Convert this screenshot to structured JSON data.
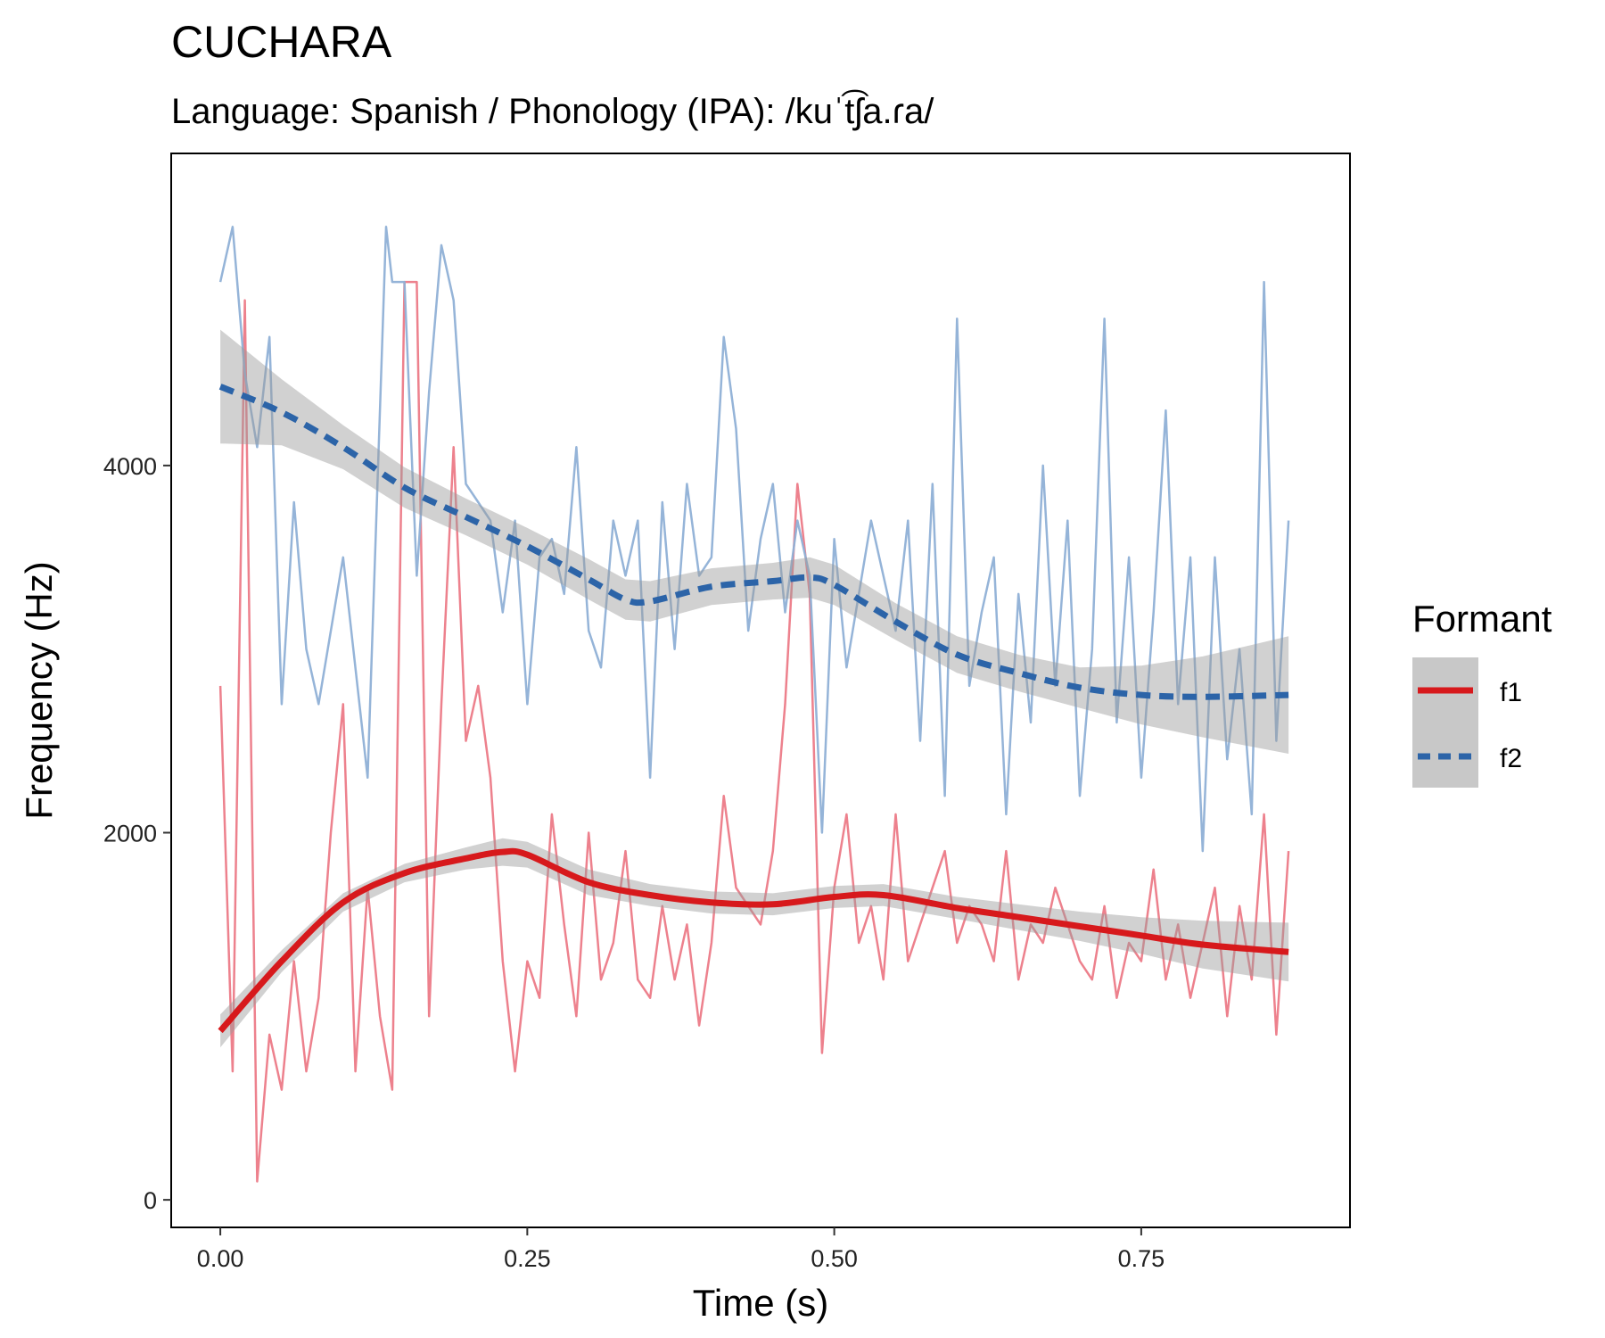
{
  "chart_data": {
    "type": "line",
    "title": "CUCHARA",
    "subtitle": "Language: Spanish / Phonology (IPA): /kuˈt͡ʃa.ɾa/",
    "xlabel": "Time (s)",
    "ylabel": "Frequency (Hz)",
    "xlim": [
      -0.04,
      0.92
    ],
    "ylim": [
      -150,
      5700
    ],
    "xticks": [
      0.0,
      0.25,
      0.5,
      0.75
    ],
    "xtick_labels": [
      "0.00",
      "0.25",
      "0.50",
      "0.75"
    ],
    "yticks": [
      0,
      2000,
      4000
    ],
    "ytick_labels": [
      "0",
      "2000",
      "4000"
    ],
    "grid": false,
    "legend": {
      "title": "Formant",
      "position": "right",
      "entries": [
        {
          "label": "f1",
          "color": "#d7191c",
          "dash": "solid"
        },
        {
          "label": "f2",
          "color": "#2c64a8",
          "dash": "dashed"
        }
      ]
    },
    "series": [
      {
        "name": "f1",
        "raw_color": "#ec7a87",
        "smooth_color": "#d7191c",
        "raw": {
          "x": [
            0.0,
            0.01,
            0.02,
            0.03,
            0.04,
            0.05,
            0.06,
            0.07,
            0.08,
            0.09,
            0.1,
            0.11,
            0.12,
            0.13,
            0.14,
            0.15,
            0.16,
            0.17,
            0.18,
            0.19,
            0.2,
            0.21,
            0.22,
            0.23,
            0.24,
            0.25,
            0.26,
            0.27,
            0.28,
            0.29,
            0.3,
            0.31,
            0.32,
            0.33,
            0.34,
            0.35,
            0.36,
            0.37,
            0.38,
            0.39,
            0.4,
            0.41,
            0.42,
            0.43,
            0.44,
            0.45,
            0.46,
            0.47,
            0.48,
            0.49,
            0.5,
            0.51,
            0.52,
            0.53,
            0.54,
            0.55,
            0.56,
            0.57,
            0.58,
            0.59,
            0.6,
            0.61,
            0.62,
            0.63,
            0.64,
            0.65,
            0.66,
            0.67,
            0.68,
            0.69,
            0.7,
            0.71,
            0.72,
            0.73,
            0.74,
            0.75,
            0.76,
            0.77,
            0.78,
            0.79,
            0.8,
            0.81,
            0.82,
            0.83,
            0.84,
            0.85,
            0.86,
            0.87
          ],
          "y": [
            2800,
            700,
            4900,
            100,
            900,
            600,
            1300,
            700,
            1100,
            2000,
            2700,
            700,
            1700,
            1000,
            600,
            5000,
            5000,
            1000,
            2700,
            4100,
            2500,
            2800,
            2300,
            1300,
            700,
            1300,
            1100,
            2100,
            1500,
            1000,
            2000,
            1200,
            1400,
            1900,
            1200,
            1100,
            1600,
            1200,
            1500,
            950,
            1400,
            2200,
            1700,
            1600,
            1500,
            1900,
            2700,
            3900,
            3300,
            800,
            1700,
            2100,
            1400,
            1600,
            1200,
            2100,
            1300,
            1500,
            1700,
            1900,
            1400,
            1600,
            1500,
            1300,
            1900,
            1200,
            1500,
            1400,
            1700,
            1500,
            1300,
            1200,
            1600,
            1100,
            1400,
            1300,
            1800,
            1200,
            1500,
            1100,
            1400,
            1700,
            1000,
            1600,
            1200,
            2100,
            900,
            1900
          ]
        },
        "smooth": {
          "x": [
            0.0,
            0.05,
            0.1,
            0.15,
            0.2,
            0.23,
            0.25,
            0.3,
            0.35,
            0.4,
            0.45,
            0.5,
            0.54,
            0.6,
            0.65,
            0.7,
            0.75,
            0.8,
            0.87
          ],
          "y": [
            920,
            1300,
            1620,
            1780,
            1860,
            1895,
            1880,
            1730,
            1660,
            1620,
            1610,
            1650,
            1660,
            1590,
            1540,
            1490,
            1440,
            1390,
            1350
          ],
          "lower": [
            830,
            1240,
            1570,
            1730,
            1800,
            1820,
            1810,
            1660,
            1600,
            1560,
            1550,
            1590,
            1600,
            1530,
            1470,
            1410,
            1340,
            1260,
            1190
          ],
          "upper": [
            1010,
            1360,
            1670,
            1830,
            1920,
            1970,
            1950,
            1800,
            1720,
            1680,
            1670,
            1710,
            1720,
            1650,
            1610,
            1570,
            1540,
            1520,
            1510
          ]
        }
      },
      {
        "name": "f2",
        "raw_color": "#8fb0d6",
        "smooth_color": "#2c64a8",
        "raw": {
          "x": [
            0.0,
            0.01,
            0.02,
            0.03,
            0.04,
            0.05,
            0.06,
            0.07,
            0.08,
            0.1,
            0.12,
            0.135,
            0.14,
            0.15,
            0.16,
            0.17,
            0.18,
            0.19,
            0.2,
            0.21,
            0.22,
            0.23,
            0.24,
            0.25,
            0.26,
            0.27,
            0.28,
            0.29,
            0.3,
            0.31,
            0.32,
            0.33,
            0.34,
            0.35,
            0.36,
            0.37,
            0.38,
            0.39,
            0.4,
            0.41,
            0.42,
            0.43,
            0.44,
            0.45,
            0.46,
            0.47,
            0.48,
            0.49,
            0.5,
            0.51,
            0.52,
            0.53,
            0.54,
            0.55,
            0.56,
            0.57,
            0.58,
            0.59,
            0.6,
            0.61,
            0.62,
            0.63,
            0.64,
            0.65,
            0.66,
            0.67,
            0.68,
            0.69,
            0.7,
            0.71,
            0.72,
            0.73,
            0.74,
            0.75,
            0.76,
            0.77,
            0.78,
            0.79,
            0.8,
            0.81,
            0.82,
            0.83,
            0.84,
            0.85,
            0.86,
            0.87
          ],
          "y": [
            5000,
            5300,
            4500,
            4100,
            4700,
            2700,
            3800,
            3000,
            2700,
            3500,
            2300,
            5300,
            5000,
            5000,
            3400,
            4400,
            5200,
            4900,
            3900,
            3800,
            3700,
            3200,
            3700,
            2700,
            3500,
            3600,
            3300,
            4100,
            3100,
            2900,
            3700,
            3400,
            3700,
            2300,
            3800,
            3000,
            3900,
            3400,
            3500,
            4700,
            4200,
            3100,
            3600,
            3900,
            3200,
            3700,
            3400,
            2000,
            3600,
            2900,
            3300,
            3700,
            3400,
            3100,
            3700,
            2500,
            3900,
            2200,
            4800,
            2800,
            3200,
            3500,
            2100,
            3300,
            2600,
            4000,
            2800,
            3700,
            2200,
            3000,
            4800,
            2600,
            3500,
            2300,
            3200,
            4300,
            2700,
            3500,
            1900,
            3500,
            2400,
            3000,
            2100,
            5000,
            2500,
            3700
          ]
        },
        "smooth": {
          "x": [
            0.0,
            0.05,
            0.1,
            0.15,
            0.2,
            0.25,
            0.3,
            0.33,
            0.35,
            0.4,
            0.45,
            0.48,
            0.5,
            0.55,
            0.6,
            0.65,
            0.7,
            0.75,
            0.8,
            0.87
          ],
          "y": [
            4430,
            4290,
            4100,
            3880,
            3720,
            3560,
            3380,
            3270,
            3260,
            3340,
            3370,
            3390,
            3350,
            3150,
            2970,
            2870,
            2790,
            2750,
            2740,
            2750
          ],
          "lower": [
            4120,
            4110,
            3980,
            3770,
            3620,
            3460,
            3270,
            3160,
            3150,
            3240,
            3270,
            3280,
            3240,
            3050,
            2870,
            2770,
            2680,
            2590,
            2520,
            2430
          ],
          "upper": [
            4740,
            4470,
            4220,
            3990,
            3820,
            3660,
            3490,
            3380,
            3370,
            3440,
            3470,
            3500,
            3460,
            3250,
            3070,
            2970,
            2900,
            2910,
            2960,
            3070
          ]
        }
      }
    ]
  }
}
